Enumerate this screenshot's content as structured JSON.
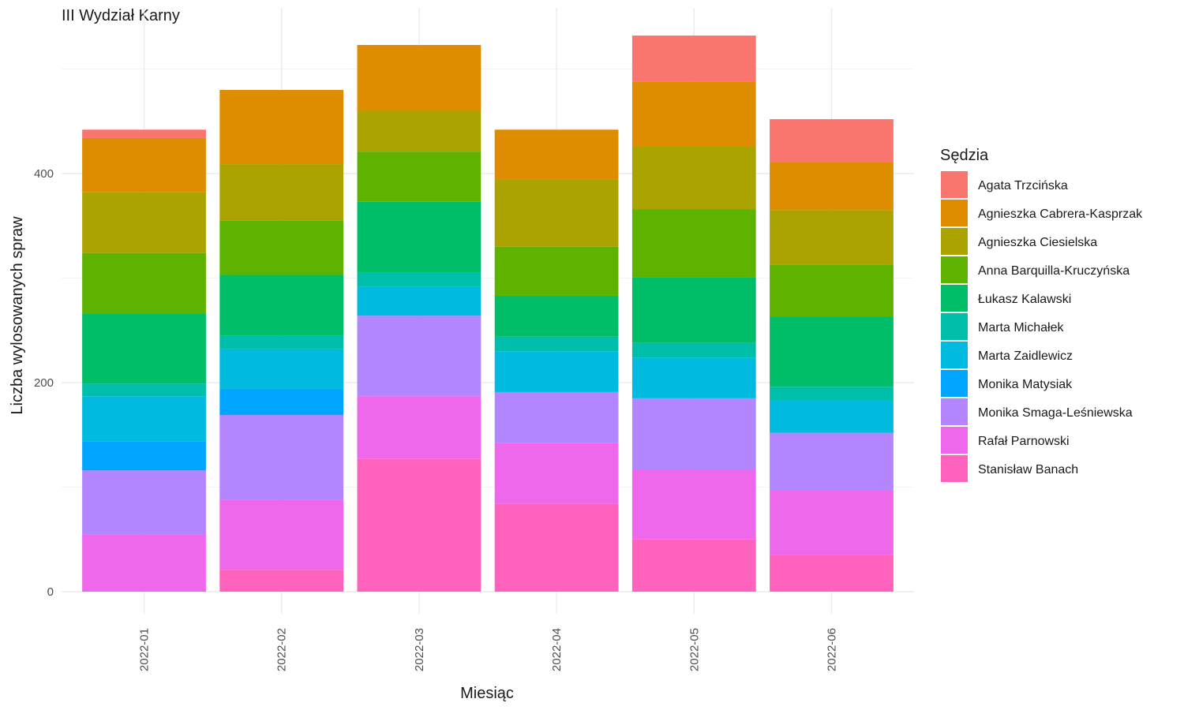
{
  "chart_data": {
    "type": "bar",
    "stacked": true,
    "title": "III Wydział Karny",
    "xlabel": "Miesiąc",
    "ylabel": "Liczba wylosowanych spraw",
    "legend_title": "Sędzia",
    "legend_position": "right",
    "grid": true,
    "ylim": [
      0,
      540
    ],
    "y_ticks": [
      0,
      200,
      400
    ],
    "categories": [
      "2022-01",
      "2022-02",
      "2022-03",
      "2022-04",
      "2022-05",
      "2022-06"
    ],
    "series": [
      {
        "name": "Stanisław Banach",
        "color": "#FF62BC",
        "values": [
          0,
          21,
          127,
          84,
          50,
          35
        ]
      },
      {
        "name": "Rafał Parnowski",
        "color": "#EF67EB",
        "values": [
          55,
          67,
          60,
          58,
          67,
          62
        ]
      },
      {
        "name": "Monika Smaga-Leśniewska",
        "color": "#B385FF",
        "values": [
          61,
          81,
          77,
          49,
          68,
          55
        ]
      },
      {
        "name": "Monika Matysiak",
        "color": "#00A5FF",
        "values": [
          28,
          25,
          0,
          0,
          0,
          0
        ]
      },
      {
        "name": "Marta Zaidlewicz",
        "color": "#00BAE0",
        "values": [
          43,
          38,
          28,
          39,
          39,
          31
        ]
      },
      {
        "name": "Marta Michałek",
        "color": "#00BFAA",
        "values": [
          12,
          13,
          13,
          14,
          14,
          13
        ]
      },
      {
        "name": "Łukasz Kalawski",
        "color": "#00BE67",
        "values": [
          67,
          58,
          68,
          39,
          63,
          67
        ]
      },
      {
        "name": "Anna Barquilla-Kruczyńska",
        "color": "#5EB300",
        "values": [
          58,
          52,
          48,
          47,
          65,
          50
        ]
      },
      {
        "name": "Agnieszka Ciesielska",
        "color": "#ABA300",
        "values": [
          58,
          54,
          39,
          64,
          60,
          52
        ]
      },
      {
        "name": "Agnieszka Cabrera-Kasprzak",
        "color": "#DE8C00",
        "values": [
          52,
          71,
          63,
          48,
          62,
          46
        ]
      },
      {
        "name": "Agata Trzcińska",
        "color": "#F8766D",
        "values": [
          8,
          0,
          0,
          0,
          44,
          41
        ]
      }
    ],
    "legend_order": [
      "Agata Trzcińska",
      "Agnieszka Cabrera-Kasprzak",
      "Agnieszka Ciesielska",
      "Anna Barquilla-Kruczyńska",
      "Łukasz Kalawski",
      "Marta Michałek",
      "Marta Zaidlewicz",
      "Monika Matysiak",
      "Monika Smaga-Leśniewska",
      "Rafał Parnowski",
      "Stanisław Banach"
    ]
  }
}
